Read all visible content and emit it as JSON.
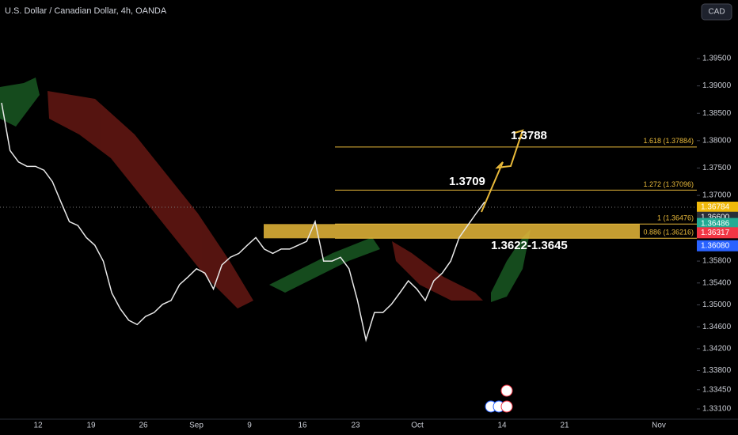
{
  "chart_data": {
    "type": "line",
    "title": "U.S. Dollar / Canadian Dollar, 4h, OANDA",
    "currency_button": "CAD",
    "series": [
      {
        "name": "USDCAD",
        "color": "#e8e8e8",
        "values": [
          1.3869,
          1.3782,
          1.3761,
          1.3753,
          1.3753,
          1.3746,
          1.3725,
          1.3688,
          1.3652,
          1.3645,
          1.3623,
          1.3609,
          1.358,
          1.3522,
          1.3493,
          1.3472,
          1.3464,
          1.3479,
          1.3486,
          1.3501,
          1.3508,
          1.3537,
          1.3551,
          1.3566,
          1.3558,
          1.3529,
          1.3573,
          1.3587,
          1.3594,
          1.3609,
          1.3623,
          1.3602,
          1.3594,
          1.3602,
          1.3602,
          1.3609,
          1.3616,
          1.3652,
          1.358,
          1.358,
          1.3587,
          1.3566,
          1.3508,
          1.3436,
          1.3486,
          1.3486,
          1.3501,
          1.3522,
          1.3544,
          1.3529,
          1.3508,
          1.3544,
          1.3558,
          1.358,
          1.3623,
          1.3645,
          1.3667,
          1.3688
        ]
      }
    ],
    "xticks": [
      "12",
      "19",
      "26",
      "Sep",
      "9",
      "16",
      "23",
      "Oct",
      "14",
      "21",
      "Nov"
    ],
    "ylim": [
      1.32912,
      1.40569
    ],
    "yticks": [
      {
        "value": 1.395,
        "label": "1.39500"
      },
      {
        "value": 1.39,
        "label": "1.39000"
      },
      {
        "value": 1.385,
        "label": "1.38500"
      },
      {
        "value": 1.38,
        "label": "1.38000"
      },
      {
        "value": 1.375,
        "label": "1.37500"
      },
      {
        "value": 1.37,
        "label": "1.37000"
      },
      {
        "value": 1.358,
        "label": "1.35800"
      },
      {
        "value": 1.354,
        "label": "1.35400"
      },
      {
        "value": 1.35,
        "label": "1.35000"
      },
      {
        "value": 1.346,
        "label": "1.34600"
      },
      {
        "value": 1.342,
        "label": "1.34200"
      },
      {
        "value": 1.338,
        "label": "1.33800"
      },
      {
        "value": 1.3345,
        "label": "1.33450"
      },
      {
        "value": 1.331,
        "label": "1.33100"
      }
    ],
    "price_tags": [
      {
        "value": 1.36784,
        "label": "1.36784",
        "color": "#f0b90b"
      },
      {
        "value": 1.366,
        "label": "1.36600",
        "color": "#2a2e39"
      },
      {
        "value": 1.36486,
        "label": "1.36486",
        "color": "#22ab94"
      },
      {
        "value": 1.36317,
        "label": "1.36317",
        "color": "#f23645"
      },
      {
        "value": 1.3608,
        "label": "1.36080",
        "color": "#2962ff"
      }
    ],
    "fib_levels": [
      {
        "value": 1.37884,
        "label": "1.618 (1.37884)"
      },
      {
        "value": 1.37096,
        "label": "1.272 (1.37096)"
      },
      {
        "value": 1.36476,
        "label": "1 (1.36476)"
      },
      {
        "value": 1.36216,
        "label": "0.886 (1.36216)"
      }
    ],
    "fib_color": "#e8b93a",
    "annotations": [
      {
        "value": 1.3788,
        "label": "1.3788"
      },
      {
        "value": 1.3709,
        "label": "1.3709"
      },
      {
        "text": "1.3622-1.3645"
      }
    ]
  }
}
